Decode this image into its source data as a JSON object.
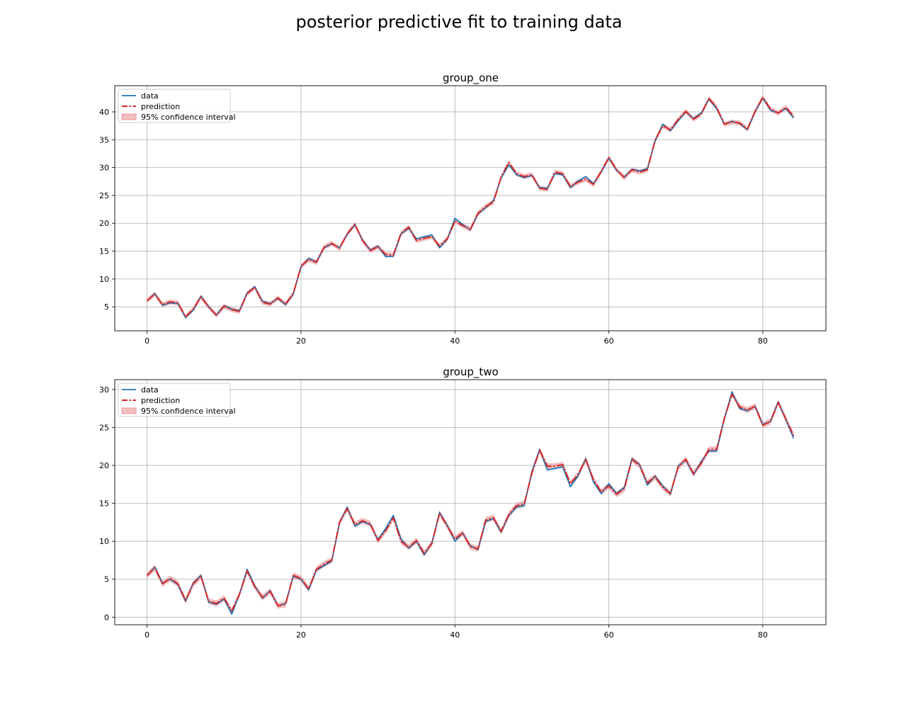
{
  "figure": {
    "suptitle": "posterior predictive fit to training data"
  },
  "colors": {
    "data": "#1f77b4",
    "prediction": "#d62728",
    "ci_fill": "#e8888a",
    "grid": "#b0b0b0",
    "axes": "#000000"
  },
  "chart_data": [
    {
      "type": "line",
      "title": "group_one",
      "xlabel": "",
      "ylabel": "",
      "xlim": [
        -4.2,
        88.2
      ],
      "ylim": [
        0.7,
        44.7
      ],
      "xticks": [
        0,
        20,
        40,
        60,
        80
      ],
      "yticks": [
        5,
        10,
        15,
        20,
        25,
        30,
        35,
        40
      ],
      "grid": true,
      "legend": {
        "position": "upper-left",
        "entries": [
          "data",
          "prediction",
          "95% confidence interval"
        ]
      },
      "x_start": 0,
      "x_step": 1,
      "series": [
        {
          "name": "data",
          "values": [
            6.1,
            7.4,
            5.3,
            5.7,
            5.6,
            3.1,
            4.4,
            6.9,
            5.0,
            3.5,
            5.2,
            4.6,
            4.3,
            7.5,
            8.6,
            6.0,
            5.6,
            6.5,
            5.4,
            7.3,
            12.2,
            13.7,
            13.1,
            15.6,
            16.3,
            15.6,
            18.0,
            19.7,
            17.0,
            15.2,
            15.9,
            14.0,
            14.1,
            18.1,
            19.1,
            17.2,
            17.6,
            17.9,
            15.6,
            17.1,
            20.9,
            19.8,
            18.8,
            21.7,
            22.8,
            24.1,
            28.1,
            30.5,
            28.7,
            28.2,
            28.6,
            26.4,
            26.3,
            28.9,
            28.7,
            26.4,
            27.6,
            28.4,
            27.1,
            29.2,
            31.7,
            29.5,
            28.3,
            29.7,
            29.4,
            29.8,
            34.7,
            37.8,
            36.6,
            38.4,
            40.0,
            38.8,
            39.8,
            42.3,
            40.6,
            37.8,
            38.3,
            37.9,
            36.8,
            40.0,
            42.5,
            40.3,
            39.8,
            40.6,
            38.9
          ]
        },
        {
          "name": "prediction",
          "values": [
            6.1,
            7.3,
            5.4,
            5.9,
            5.7,
            3.2,
            4.6,
            6.8,
            5.0,
            3.5,
            5.1,
            4.5,
            4.2,
            7.4,
            8.5,
            5.8,
            5.5,
            6.6,
            5.5,
            7.4,
            12.3,
            13.5,
            13.0,
            15.7,
            16.4,
            15.5,
            18.1,
            19.8,
            16.9,
            15.1,
            15.8,
            14.4,
            14.3,
            18.2,
            19.3,
            16.9,
            17.3,
            17.6,
            15.9,
            17.2,
            20.4,
            19.6,
            18.9,
            21.8,
            23.0,
            23.8,
            28.3,
            30.9,
            28.9,
            28.4,
            28.7,
            26.3,
            26.1,
            29.2,
            28.9,
            26.6,
            27.4,
            27.9,
            27.0,
            29.3,
            31.8,
            29.6,
            28.2,
            29.6,
            29.2,
            29.6,
            34.9,
            37.5,
            36.8,
            38.6,
            40.1,
            38.7,
            39.6,
            42.4,
            40.8,
            37.8,
            38.2,
            38.0,
            36.9,
            40.1,
            42.6,
            40.5,
            39.8,
            40.8,
            39.2
          ]
        }
      ],
      "ci_halfwidth": 0.45
    },
    {
      "type": "line",
      "title": "group_two",
      "xlabel": "",
      "ylabel": "",
      "xlim": [
        -4.2,
        88.2
      ],
      "ylim": [
        -1.0,
        31.3
      ],
      "xticks": [
        0,
        20,
        40,
        60,
        80
      ],
      "yticks": [
        0,
        5,
        10,
        15,
        20,
        25,
        30
      ],
      "grid": true,
      "legend": {
        "position": "upper-left",
        "entries": [
          "data",
          "prediction",
          "95% confidence interval"
        ]
      },
      "x_start": 0,
      "x_step": 1,
      "series": [
        {
          "name": "data",
          "values": [
            5.5,
            6.6,
            4.5,
            5.0,
            4.3,
            2.1,
            4.5,
            5.5,
            2.0,
            1.7,
            2.4,
            0.4,
            3.0,
            6.3,
            4.1,
            2.5,
            3.5,
            1.5,
            1.8,
            5.4,
            5.0,
            3.6,
            6.2,
            6.8,
            7.4,
            12.4,
            14.5,
            12.0,
            12.6,
            12.2,
            10.2,
            11.7,
            13.4,
            10.3,
            9.1,
            10.0,
            8.2,
            9.8,
            13.8,
            12.1,
            10.0,
            11.1,
            9.4,
            8.9,
            12.6,
            13.0,
            11.2,
            13.4,
            14.5,
            14.7,
            19.2,
            22.1,
            19.4,
            19.6,
            19.8,
            17.2,
            18.6,
            20.9,
            17.8,
            16.3,
            17.6,
            16.3,
            17.1,
            20.9,
            20.1,
            17.4,
            18.6,
            17.3,
            16.2,
            19.9,
            20.7,
            18.8,
            20.5,
            21.9,
            21.9,
            26.1,
            29.7,
            27.5,
            27.2,
            27.8,
            25.4,
            25.8,
            28.4,
            26.0,
            23.6
          ]
        },
        {
          "name": "prediction",
          "values": [
            5.5,
            6.5,
            4.4,
            5.1,
            4.4,
            2.2,
            4.4,
            5.4,
            2.1,
            1.8,
            2.5,
            0.8,
            3.0,
            6.1,
            4.0,
            2.6,
            3.4,
            1.5,
            1.7,
            5.5,
            5.1,
            3.7,
            6.3,
            7.0,
            7.5,
            12.5,
            14.3,
            12.2,
            12.7,
            12.3,
            10.1,
            11.4,
            13.1,
            10.0,
            9.2,
            10.1,
            8.4,
            9.7,
            13.7,
            12.0,
            10.3,
            11.1,
            9.3,
            9.0,
            12.8,
            13.1,
            11.3,
            13.5,
            14.7,
            14.9,
            19.0,
            22.0,
            19.9,
            19.9,
            20.1,
            17.6,
            18.8,
            20.8,
            18.1,
            16.5,
            17.3,
            16.2,
            16.9,
            20.8,
            20.0,
            17.7,
            18.5,
            17.1,
            16.3,
            19.8,
            20.8,
            18.9,
            20.3,
            22.1,
            22.1,
            26.2,
            29.4,
            27.7,
            27.3,
            27.8,
            25.3,
            25.8,
            28.3,
            26.1,
            23.9
          ]
        }
      ],
      "ci_halfwidth": 0.4
    }
  ]
}
